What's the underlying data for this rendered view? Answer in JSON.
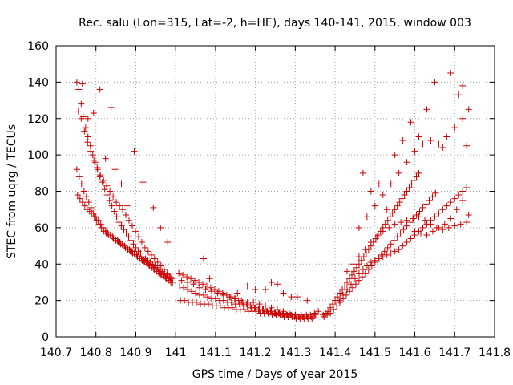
{
  "chart_data": {
    "type": "scatter",
    "title": "Rec. salu (Lon=315, Lat=-2, h=HE), days 140-141, 2015, window 003",
    "xlabel": "GPS time / Days of year 2015",
    "ylabel": "STEC from uqrg / TECUs",
    "xlim": [
      140.7,
      141.8
    ],
    "ylim": [
      0,
      160
    ],
    "x_ticks": [
      140.7,
      140.8,
      140.9,
      141,
      141.1,
      141.2,
      141.3,
      141.4,
      141.5,
      141.6,
      141.7,
      141.8
    ],
    "x_tick_labels": [
      "140.7",
      "140.8",
      "140.9",
      "141",
      "141.1",
      "141.2",
      "141.3",
      "141.4",
      "141.5",
      "141.6",
      "141.7",
      "141.8"
    ],
    "y_ticks": [
      0,
      20,
      40,
      60,
      80,
      100,
      120,
      140,
      160
    ],
    "y_tick_labels": [
      "0",
      "20",
      "40",
      "60",
      "80",
      "100",
      "120",
      "140",
      "160"
    ],
    "grid": true,
    "legend": false,
    "marker": "+",
    "color": "#cc0000",
    "series": [
      {
        "x": [
          140.752,
          140.757,
          140.763,
          140.768,
          140.774,
          140.78,
          140.786,
          140.792,
          140.798,
          140.804,
          140.81,
          140.816,
          140.822,
          140.828,
          140.834,
          140.84,
          140.846,
          140.852,
          140.858,
          140.864,
          140.87,
          140.876,
          140.882,
          140.888,
          140.894,
          140.9,
          140.906,
          140.912,
          140.918,
          140.924,
          140.93,
          140.936,
          140.942,
          140.948,
          140.954,
          140.96,
          140.966,
          140.972,
          140.978,
          140.984,
          140.99
        ],
        "y": [
          140,
          136,
          128,
          121,
          115,
          110,
          105,
          100,
          96,
          92,
          88,
          85,
          81,
          78,
          75,
          72,
          69,
          66,
          63,
          61,
          59,
          57,
          55,
          53,
          51,
          49,
          47,
          46,
          44,
          43,
          42,
          41,
          40,
          39,
          38,
          37,
          36,
          35,
          34,
          33,
          32
        ]
      },
      {
        "x": [
          140.752,
          140.758,
          140.764,
          140.77,
          140.776,
          140.782,
          140.788,
          140.794,
          140.8,
          140.806,
          140.812,
          140.818,
          140.824,
          140.83,
          140.836,
          140.842,
          140.848,
          140.854,
          140.86,
          140.866,
          140.872,
          140.878,
          140.884,
          140.89,
          140.896,
          140.902,
          140.908,
          140.914,
          140.92,
          140.926,
          140.932,
          140.938,
          140.944,
          140.95,
          140.956,
          140.962,
          140.968,
          140.974,
          140.98,
          140.986,
          140.992
        ],
        "y": [
          92,
          88,
          84,
          80,
          77,
          74,
          71,
          68,
          66,
          64,
          62,
          60,
          58,
          57,
          56,
          55,
          54,
          53,
          52,
          51,
          50,
          49,
          48,
          47,
          46,
          45,
          44,
          43,
          42,
          41,
          40,
          39,
          38,
          37,
          36,
          35,
          34,
          33,
          32,
          31,
          30
        ]
      },
      {
        "x": [
          140.754,
          140.76,
          140.766,
          140.772,
          140.778,
          140.784,
          140.79,
          140.796,
          140.802,
          140.808,
          140.814,
          140.82,
          140.826,
          140.832,
          140.838,
          140.844,
          140.85,
          140.856,
          140.862,
          140.868,
          140.874,
          140.88,
          140.886,
          140.892,
          140.898,
          140.904,
          140.91,
          140.916,
          140.922,
          140.928,
          140.934,
          140.94,
          140.946,
          140.952,
          140.958,
          140.964,
          140.97,
          140.976,
          140.982,
          140.988
        ],
        "y": [
          78,
          76,
          74,
          72,
          70,
          69,
          68,
          66,
          64,
          62,
          60,
          58,
          57,
          56,
          55,
          54,
          53,
          52,
          51,
          50,
          49,
          48,
          47,
          46,
          45,
          44,
          43,
          42,
          41,
          40,
          39,
          38,
          37,
          36,
          35,
          34,
          33,
          32,
          31,
          30
        ]
      },
      {
        "x": [
          140.756,
          140.763,
          140.771,
          140.779,
          140.787,
          140.795,
          140.803,
          140.811,
          140.819,
          140.827,
          140.835,
          140.843,
          140.851,
          140.859,
          140.867,
          140.875,
          140.883,
          140.891,
          140.899,
          140.907,
          140.915,
          140.923,
          140.931,
          140.939,
          140.947,
          140.955,
          140.963,
          140.971,
          140.979,
          140.987
        ],
        "y": [
          124,
          120,
          113,
          107,
          102,
          97,
          93,
          89,
          86,
          83,
          80,
          77,
          74,
          72,
          70,
          67,
          64,
          61,
          58,
          55,
          52,
          49,
          47,
          45,
          43,
          41,
          39,
          37,
          35,
          33
        ]
      },
      {
        "x": [
          140.766,
          140.78,
          140.794,
          140.81,
          140.824,
          140.838,
          140.848,
          140.864,
          140.878,
          140.896,
          140.918,
          140.944,
          140.962,
          140.98
        ],
        "y": [
          139,
          120,
          123,
          136,
          98,
          126,
          92,
          84,
          72,
          102,
          85,
          71,
          60,
          52
        ]
      },
      {
        "x": [
          141.008,
          141.018,
          141.028,
          141.038,
          141.048,
          141.058,
          141.068,
          141.078,
          141.088,
          141.098,
          141.108,
          141.118,
          141.128,
          141.138,
          141.148,
          141.158,
          141.168,
          141.178,
          141.188,
          141.198,
          141.208,
          141.218,
          141.228,
          141.238,
          141.248,
          141.258,
          141.268,
          141.278,
          141.288,
          141.298,
          141.308,
          141.318,
          141.328,
          141.338,
          141.348,
          141.358
        ],
        "y": [
          35,
          34,
          33,
          32,
          31,
          30,
          29,
          28,
          27,
          26,
          25,
          24,
          23,
          22,
          21,
          20,
          19,
          18,
          17,
          16,
          15,
          15,
          14,
          14,
          13,
          13,
          12,
          12,
          12,
          11,
          11,
          11,
          12,
          12,
          13,
          14
        ]
      },
      {
        "x": [
          141.01,
          141.02,
          141.03,
          141.04,
          141.05,
          141.06,
          141.07,
          141.08,
          141.09,
          141.1,
          141.11,
          141.12,
          141.13,
          141.14,
          141.15,
          141.16,
          141.17,
          141.18,
          141.19,
          141.2,
          141.21,
          141.22,
          141.23,
          141.24,
          141.25,
          141.26,
          141.27,
          141.28,
          141.29,
          141.3,
          141.31,
          141.32,
          141.33,
          141.34,
          141.35
        ],
        "y": [
          28,
          27,
          26,
          25,
          24,
          23,
          23,
          22,
          21,
          21,
          20,
          20,
          19,
          19,
          18,
          18,
          17,
          17,
          16,
          16,
          15,
          15,
          14,
          14,
          13,
          13,
          13,
          12,
          12,
          12,
          11,
          11,
          11,
          11,
          12
        ]
      },
      {
        "x": [
          141.012,
          141.022,
          141.032,
          141.042,
          141.052,
          141.062,
          141.072,
          141.082,
          141.092,
          141.102,
          141.112,
          141.122,
          141.132,
          141.142,
          141.152,
          141.162,
          141.172,
          141.182,
          141.192,
          141.202,
          141.212,
          141.222,
          141.232,
          141.242,
          141.252,
          141.262,
          141.272,
          141.282,
          141.292,
          141.302,
          141.312,
          141.322,
          141.332,
          141.342
        ],
        "y": [
          20,
          20,
          19,
          19,
          19,
          18,
          18,
          18,
          17,
          17,
          17,
          16,
          16,
          16,
          15,
          15,
          15,
          14,
          14,
          14,
          13,
          13,
          13,
          12,
          12,
          12,
          11,
          11,
          11,
          10,
          10,
          10,
          10,
          10
        ]
      },
      {
        "x": [
          141.015,
          141.03,
          141.045,
          141.06,
          141.075,
          141.09,
          141.105,
          141.12,
          141.135,
          141.15,
          141.165,
          141.18,
          141.195,
          141.21,
          141.225,
          141.24,
          141.255,
          141.27,
          141.285,
          141.3,
          141.315,
          141.33,
          141.345
        ],
        "y": [
          31,
          30,
          29,
          27,
          26,
          25,
          24,
          23,
          22,
          21,
          20,
          19,
          19,
          18,
          17,
          16,
          15,
          14,
          13,
          12,
          12,
          11,
          11
        ]
      },
      {
        "x": [
          141.07,
          141.085,
          141.155,
          141.18,
          141.2,
          141.225,
          141.24,
          141.255,
          141.27,
          141.29,
          141.305,
          141.33
        ],
        "y": [
          43,
          32,
          24,
          28,
          26,
          26,
          30,
          29,
          24,
          22,
          22,
          20
        ]
      },
      {
        "x": [
          141.37,
          141.376,
          141.382,
          141.388,
          141.394,
          141.4,
          141.406,
          141.412,
          141.418,
          141.424,
          141.43,
          141.436,
          141.442,
          141.448,
          141.454,
          141.46,
          141.466,
          141.472,
          141.478,
          141.484,
          141.49,
          141.496,
          141.502,
          141.508,
          141.514,
          141.52,
          141.526,
          141.532,
          141.538,
          141.544,
          141.55,
          141.556,
          141.562,
          141.568,
          141.574,
          141.58,
          141.586,
          141.592,
          141.598,
          141.604,
          141.61
        ],
        "y": [
          12,
          13,
          14,
          16,
          18,
          20,
          22,
          24,
          26,
          28,
          30,
          32,
          34,
          36,
          38,
          40,
          42,
          44,
          46,
          48,
          50,
          52,
          54,
          56,
          58,
          60,
          62,
          64,
          66,
          68,
          70,
          72,
          74,
          76,
          78,
          80,
          82,
          84,
          86,
          88,
          90
        ]
      },
      {
        "x": [
          141.372,
          141.38,
          141.388,
          141.396,
          141.404,
          141.412,
          141.42,
          141.428,
          141.436,
          141.444,
          141.452,
          141.46,
          141.468,
          141.476,
          141.484,
          141.492,
          141.5,
          141.508,
          141.516,
          141.524,
          141.532,
          141.54,
          141.548,
          141.556,
          141.564,
          141.572,
          141.58,
          141.588,
          141.596,
          141.604,
          141.612,
          141.62,
          141.628,
          141.636,
          141.644,
          141.652
        ],
        "y": [
          11,
          12,
          13,
          15,
          17,
          19,
          21,
          23,
          25,
          27,
          29,
          31,
          33,
          35,
          37,
          39,
          41,
          43,
          45,
          47,
          49,
          51,
          53,
          55,
          57,
          59,
          61,
          63,
          65,
          67,
          69,
          71,
          73,
          75,
          77,
          79
        ]
      },
      {
        "x": [
          141.41,
          141.42,
          141.43,
          141.44,
          141.45,
          141.46,
          141.47,
          141.48,
          141.49,
          141.5,
          141.51,
          141.52,
          141.53,
          141.54,
          141.55,
          141.56,
          141.57,
          141.58,
          141.59,
          141.6,
          141.61,
          141.62,
          141.63,
          141.64,
          141.65,
          141.66,
          141.67,
          141.68,
          141.69,
          141.7,
          141.71,
          141.72,
          141.73
        ],
        "y": [
          20,
          23,
          26,
          29,
          32,
          35,
          37,
          39,
          41,
          42,
          43,
          44,
          45,
          46,
          47,
          48,
          50,
          52,
          54,
          56,
          58,
          60,
          62,
          64,
          66,
          68,
          70,
          72,
          74,
          76,
          78,
          80,
          82
        ]
      },
      {
        "x": [
          141.43,
          141.445,
          141.46,
          141.475,
          141.49,
          141.505,
          141.52,
          141.535,
          141.55,
          141.565,
          141.58,
          141.595,
          141.61,
          141.625,
          141.64,
          141.655,
          141.67,
          141.685,
          141.7,
          141.715,
          141.73
        ],
        "y": [
          36,
          40,
          44,
          48,
          52,
          55,
          58,
          60,
          62,
          63,
          64,
          65,
          66,
          64,
          62,
          60,
          59,
          60,
          61,
          62,
          63
        ]
      },
      {
        "x": [
          141.46,
          141.48,
          141.5,
          141.52,
          141.54,
          141.56,
          141.58,
          141.6,
          141.62,
          141.64,
          141.66,
          141.68,
          141.7,
          141.72,
          141.735
        ],
        "y": [
          60,
          66,
          72,
          78,
          84,
          90,
          96,
          102,
          106,
          108,
          106,
          110,
          115,
          120,
          125
        ]
      },
      {
        "x": [
          141.47,
          141.49,
          141.51,
          141.53,
          141.55,
          141.57,
          141.59,
          141.61,
          141.63,
          141.65,
          141.67,
          141.69,
          141.71,
          141.72,
          141.73
        ],
        "y": [
          90,
          80,
          84,
          70,
          100,
          108,
          118,
          110,
          125,
          140,
          104,
          145,
          133,
          138,
          105
        ]
      },
      {
        "x": [
          141.6,
          141.615,
          141.63,
          141.645,
          141.66,
          141.675,
          141.69,
          141.705,
          141.72,
          141.735
        ],
        "y": [
          58,
          57,
          56,
          58,
          60,
          62,
          65,
          70,
          75,
          67
        ]
      }
    ]
  }
}
